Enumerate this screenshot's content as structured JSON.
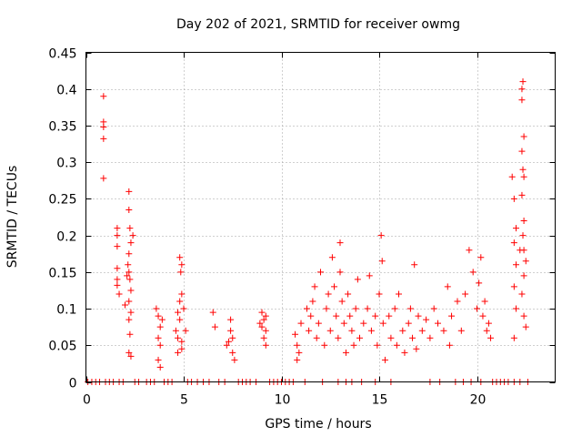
{
  "chart_data": {
    "type": "scatter",
    "title": "Day 202 of 2021, SRMTID for receiver owmg",
    "xlabel": "GPS time / hours",
    "ylabel": "SRMTID / TECUs",
    "xlim": [
      0,
      24
    ],
    "ylim": [
      0,
      0.45
    ],
    "xticks": [
      0,
      5,
      10,
      15,
      20
    ],
    "xtick_labels": [
      "0",
      "5",
      "10",
      "15",
      "20"
    ],
    "yticks": [
      0,
      0.05,
      0.1,
      0.15,
      0.2,
      0.25,
      0.3,
      0.35,
      0.4,
      0.45
    ],
    "ytick_labels": [
      "0",
      "0.05",
      "0.1",
      "0.15",
      "0.2",
      "0.25",
      "0.3",
      "0.35",
      "0.4",
      "0.45"
    ],
    "grid": true,
    "marker": "plus",
    "marker_color": "#ff0000",
    "series": [
      {
        "name": "SRMTID",
        "points": [
          [
            0.9,
            0.39
          ],
          [
            0.9,
            0.355
          ],
          [
            0.9,
            0.348
          ],
          [
            0.9,
            0.332
          ],
          [
            0.9,
            0.278
          ],
          [
            1.6,
            0.21
          ],
          [
            1.6,
            0.2
          ],
          [
            1.6,
            0.185
          ],
          [
            1.6,
            0.155
          ],
          [
            1.6,
            0.14
          ],
          [
            1.6,
            0.132
          ],
          [
            1.7,
            0.12
          ],
          [
            2.2,
            0.26
          ],
          [
            2.2,
            0.235
          ],
          [
            2.25,
            0.21
          ],
          [
            2.3,
            0.19
          ],
          [
            2.2,
            0.175
          ],
          [
            2.15,
            0.16
          ],
          [
            2.2,
            0.15
          ],
          [
            2.25,
            0.14
          ],
          [
            2.3,
            0.125
          ],
          [
            2.2,
            0.11
          ],
          [
            2.3,
            0.095
          ],
          [
            2.2,
            0.085
          ],
          [
            2.25,
            0.065
          ],
          [
            2.2,
            0.04
          ],
          [
            2.3,
            0.035
          ],
          [
            2.4,
            0.2
          ],
          [
            2.1,
            0.145
          ],
          [
            2.0,
            0.105
          ],
          [
            3.6,
            0.1
          ],
          [
            3.7,
            0.09
          ],
          [
            3.8,
            0.075
          ],
          [
            3.7,
            0.06
          ],
          [
            3.8,
            0.05
          ],
          [
            3.7,
            0.03
          ],
          [
            3.8,
            0.02
          ],
          [
            3.9,
            0.085
          ],
          [
            4.6,
            0.07
          ],
          [
            4.7,
            0.095
          ],
          [
            4.8,
            0.085
          ],
          [
            4.7,
            0.06
          ],
          [
            4.9,
            0.055
          ],
          [
            4.8,
            0.17
          ],
          [
            4.9,
            0.16
          ],
          [
            4.85,
            0.15
          ],
          [
            4.9,
            0.12
          ],
          [
            4.8,
            0.11
          ],
          [
            5.0,
            0.1
          ],
          [
            4.7,
            0.04
          ],
          [
            4.9,
            0.045
          ],
          [
            5.1,
            0.07
          ],
          [
            6.5,
            0.095
          ],
          [
            6.6,
            0.075
          ],
          [
            7.2,
            0.05
          ],
          [
            7.4,
            0.085
          ],
          [
            7.5,
            0.06
          ],
          [
            7.5,
            0.04
          ],
          [
            7.6,
            0.03
          ],
          [
            7.4,
            0.07
          ],
          [
            7.3,
            0.055
          ],
          [
            9.0,
            0.095
          ],
          [
            9.1,
            0.085
          ],
          [
            9.0,
            0.075
          ],
          [
            9.2,
            0.07
          ],
          [
            9.1,
            0.06
          ],
          [
            9.2,
            0.05
          ],
          [
            8.9,
            0.08
          ],
          [
            9.2,
            0.09
          ],
          [
            10.7,
            0.065
          ],
          [
            10.8,
            0.05
          ],
          [
            10.9,
            0.04
          ],
          [
            10.8,
            0.03
          ],
          [
            11.0,
            0.08
          ],
          [
            11.3,
            0.1
          ],
          [
            11.4,
            0.07
          ],
          [
            11.5,
            0.09
          ],
          [
            11.6,
            0.11
          ],
          [
            11.7,
            0.13
          ],
          [
            11.8,
            0.06
          ],
          [
            11.9,
            0.08
          ],
          [
            12.0,
            0.15
          ],
          [
            12.2,
            0.05
          ],
          [
            12.3,
            0.1
          ],
          [
            12.4,
            0.12
          ],
          [
            12.5,
            0.07
          ],
          [
            12.6,
            0.17
          ],
          [
            12.7,
            0.13
          ],
          [
            12.8,
            0.09
          ],
          [
            12.9,
            0.06
          ],
          [
            13.0,
            0.19
          ],
          [
            13.0,
            0.15
          ],
          [
            13.1,
            0.11
          ],
          [
            13.2,
            0.08
          ],
          [
            13.3,
            0.04
          ],
          [
            13.4,
            0.12
          ],
          [
            13.5,
            0.09
          ],
          [
            13.6,
            0.07
          ],
          [
            13.7,
            0.05
          ],
          [
            13.8,
            0.1
          ],
          [
            13.9,
            0.14
          ],
          [
            14.0,
            0.06
          ],
          [
            14.2,
            0.08
          ],
          [
            14.4,
            0.1
          ],
          [
            14.5,
            0.145
          ],
          [
            14.6,
            0.07
          ],
          [
            14.8,
            0.09
          ],
          [
            14.9,
            0.05
          ],
          [
            15.0,
            0.12
          ],
          [
            15.1,
            0.2
          ],
          [
            15.15,
            0.165
          ],
          [
            15.2,
            0.08
          ],
          [
            15.3,
            0.03
          ],
          [
            15.5,
            0.09
          ],
          [
            15.6,
            0.06
          ],
          [
            15.8,
            0.1
          ],
          [
            15.9,
            0.05
          ],
          [
            16.0,
            0.12
          ],
          [
            16.2,
            0.07
          ],
          [
            16.3,
            0.04
          ],
          [
            16.5,
            0.08
          ],
          [
            16.6,
            0.1
          ],
          [
            16.7,
            0.06
          ],
          [
            16.8,
            0.16
          ],
          [
            16.9,
            0.045
          ],
          [
            17.0,
            0.09
          ],
          [
            17.2,
            0.07
          ],
          [
            17.4,
            0.085
          ],
          [
            17.6,
            0.06
          ],
          [
            17.8,
            0.1
          ],
          [
            18.0,
            0.08
          ],
          [
            18.3,
            0.07
          ],
          [
            18.5,
            0.13
          ],
          [
            18.6,
            0.05
          ],
          [
            18.7,
            0.09
          ],
          [
            19.0,
            0.11
          ],
          [
            19.2,
            0.07
          ],
          [
            19.4,
            0.12
          ],
          [
            19.6,
            0.18
          ],
          [
            19.8,
            0.15
          ],
          [
            20.0,
            0.1
          ],
          [
            20.1,
            0.135
          ],
          [
            20.2,
            0.17
          ],
          [
            20.3,
            0.09
          ],
          [
            20.4,
            0.11
          ],
          [
            20.5,
            0.07
          ],
          [
            20.6,
            0.08
          ],
          [
            20.7,
            0.06
          ],
          [
            21.8,
            0.28
          ],
          [
            21.9,
            0.25
          ],
          [
            22.0,
            0.21
          ],
          [
            21.9,
            0.19
          ],
          [
            22.0,
            0.16
          ],
          [
            21.9,
            0.13
          ],
          [
            22.0,
            0.1
          ],
          [
            21.9,
            0.06
          ],
          [
            22.3,
            0.4
          ],
          [
            22.35,
            0.41
          ],
          [
            22.3,
            0.385
          ],
          [
            22.4,
            0.335
          ],
          [
            22.3,
            0.315
          ],
          [
            22.35,
            0.29
          ],
          [
            22.4,
            0.28
          ],
          [
            22.3,
            0.255
          ],
          [
            22.4,
            0.22
          ],
          [
            22.35,
            0.2
          ],
          [
            22.4,
            0.18
          ],
          [
            22.5,
            0.165
          ],
          [
            22.4,
            0.145
          ],
          [
            22.3,
            0.12
          ],
          [
            22.4,
            0.09
          ],
          [
            22.5,
            0.075
          ],
          [
            22.2,
            0.18
          ]
        ]
      }
    ],
    "zero_row_x": [
      0.1,
      0.3,
      0.5,
      0.7,
      1.0,
      1.2,
      1.4,
      1.7,
      1.9,
      2.5,
      2.7,
      3.1,
      3.3,
      3.5,
      4.0,
      4.2,
      4.4,
      5.2,
      5.4,
      5.7,
      6.0,
      6.3,
      6.8,
      7.1,
      7.8,
      8.0,
      8.2,
      8.4,
      8.7,
      9.4,
      9.6,
      9.8,
      10.0,
      10.2,
      10.4,
      10.6,
      11.2,
      12.1,
      12.9,
      13.3,
      13.6,
      14.1,
      14.8,
      15.6,
      17.6,
      18.1,
      18.9,
      19.3,
      19.7,
      20.2,
      20.8,
      21.0,
      21.2,
      21.4,
      21.6,
      21.9,
      22.2,
      22.6
    ]
  }
}
